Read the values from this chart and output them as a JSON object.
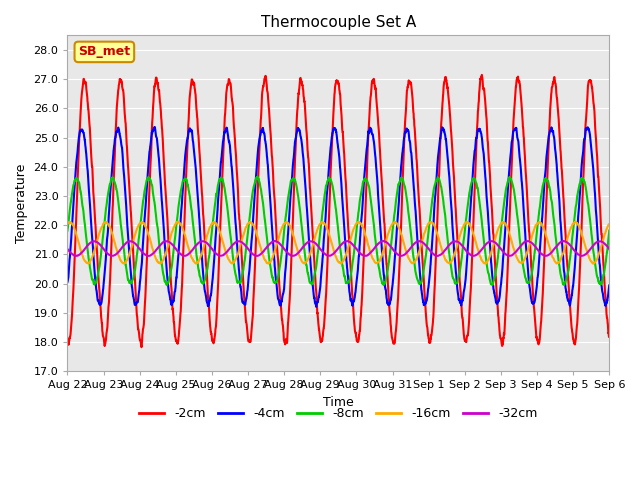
{
  "title": "Thermocouple Set A",
  "xlabel": "Time",
  "ylabel": "Temperature",
  "ylim": [
    17.0,
    28.5
  ],
  "yticks": [
    17.0,
    18.0,
    19.0,
    20.0,
    21.0,
    22.0,
    23.0,
    24.0,
    25.0,
    26.0,
    27.0,
    28.0
  ],
  "x_start_days": 0,
  "x_end_days": 15.0,
  "xtick_labels": [
    "Aug 22",
    "Aug 23",
    "Aug 24",
    "Aug 25",
    "Aug 26",
    "Aug 27",
    "Aug 28",
    "Aug 29",
    "Aug 30",
    "Aug 31",
    "Sep 1",
    "Sep 2",
    "Sep 3",
    "Sep 4",
    "Sep 5",
    "Sep 6"
  ],
  "xtick_positions": [
    0,
    1,
    2,
    3,
    4,
    5,
    6,
    7,
    8,
    9,
    10,
    11,
    12,
    13,
    14,
    15
  ],
  "series": [
    {
      "label": "-2cm",
      "color": "#ff0000",
      "amp": 4.4,
      "mean": 22.5,
      "phase": -1.57,
      "amp2": 0.5,
      "phase2": -3.14
    },
    {
      "label": "-4cm",
      "color": "#0000ff",
      "amp": 3.0,
      "mean": 22.3,
      "phase": -0.9,
      "amp2": 0.0,
      "phase2": 0.0
    },
    {
      "label": "-8cm",
      "color": "#00cc00",
      "amp": 1.8,
      "mean": 21.8,
      "phase": -0.0,
      "amp2": 0.0,
      "phase2": 0.0
    },
    {
      "label": "-16cm",
      "color": "#ffaa00",
      "amp": 0.7,
      "mean": 21.4,
      "phase": 1.2,
      "amp2": 0.0,
      "phase2": 0.0
    },
    {
      "label": "-32cm",
      "color": "#cc00cc",
      "amp": 0.25,
      "mean": 21.2,
      "phase": 3.2,
      "amp2": 0.0,
      "phase2": 0.0
    }
  ],
  "period_days": 1.0,
  "n_points": 3000,
  "plot_bg_color": "#e8e8e8",
  "fig_bg_color": "#ffffff",
  "annotation_text": "SB_met",
  "annotation_bg": "#ffff99",
  "annotation_border": "#cc8800",
  "annotation_text_color": "#cc0000",
  "grid_color": "#ffffff",
  "line_width": 1.5,
  "title_fontsize": 11,
  "axis_fontsize": 9,
  "tick_fontsize": 8
}
